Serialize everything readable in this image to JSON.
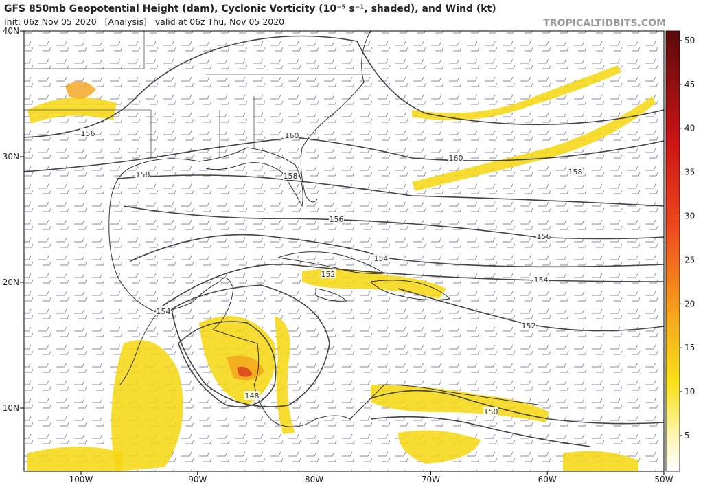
{
  "header": {
    "title": "GFS 850mb Geopotential Height (dam), Cyclonic Vorticity (10⁻⁵ s⁻¹, shaded), and Wind (kt)",
    "init": "Init: 06z Nov 05 2020   [Analysis]   valid at 06z Thu, Nov 05 2020",
    "site": "TROPICALTIDBITS.COM"
  },
  "map": {
    "lat_labels": [
      "40N",
      "30N",
      "20N",
      "10N"
    ],
    "lon_labels": [
      "100W",
      "90W",
      "80W",
      "70W",
      "60W",
      "50W"
    ],
    "contour_labels": [
      156,
      158,
      160,
      158,
      160,
      158,
      156,
      156,
      154,
      152,
      154,
      154,
      152,
      148,
      150
    ]
  },
  "colorbar": {
    "ticks": [
      5,
      10,
      15,
      20,
      25,
      30,
      35,
      40,
      45,
      50
    ]
  }
}
